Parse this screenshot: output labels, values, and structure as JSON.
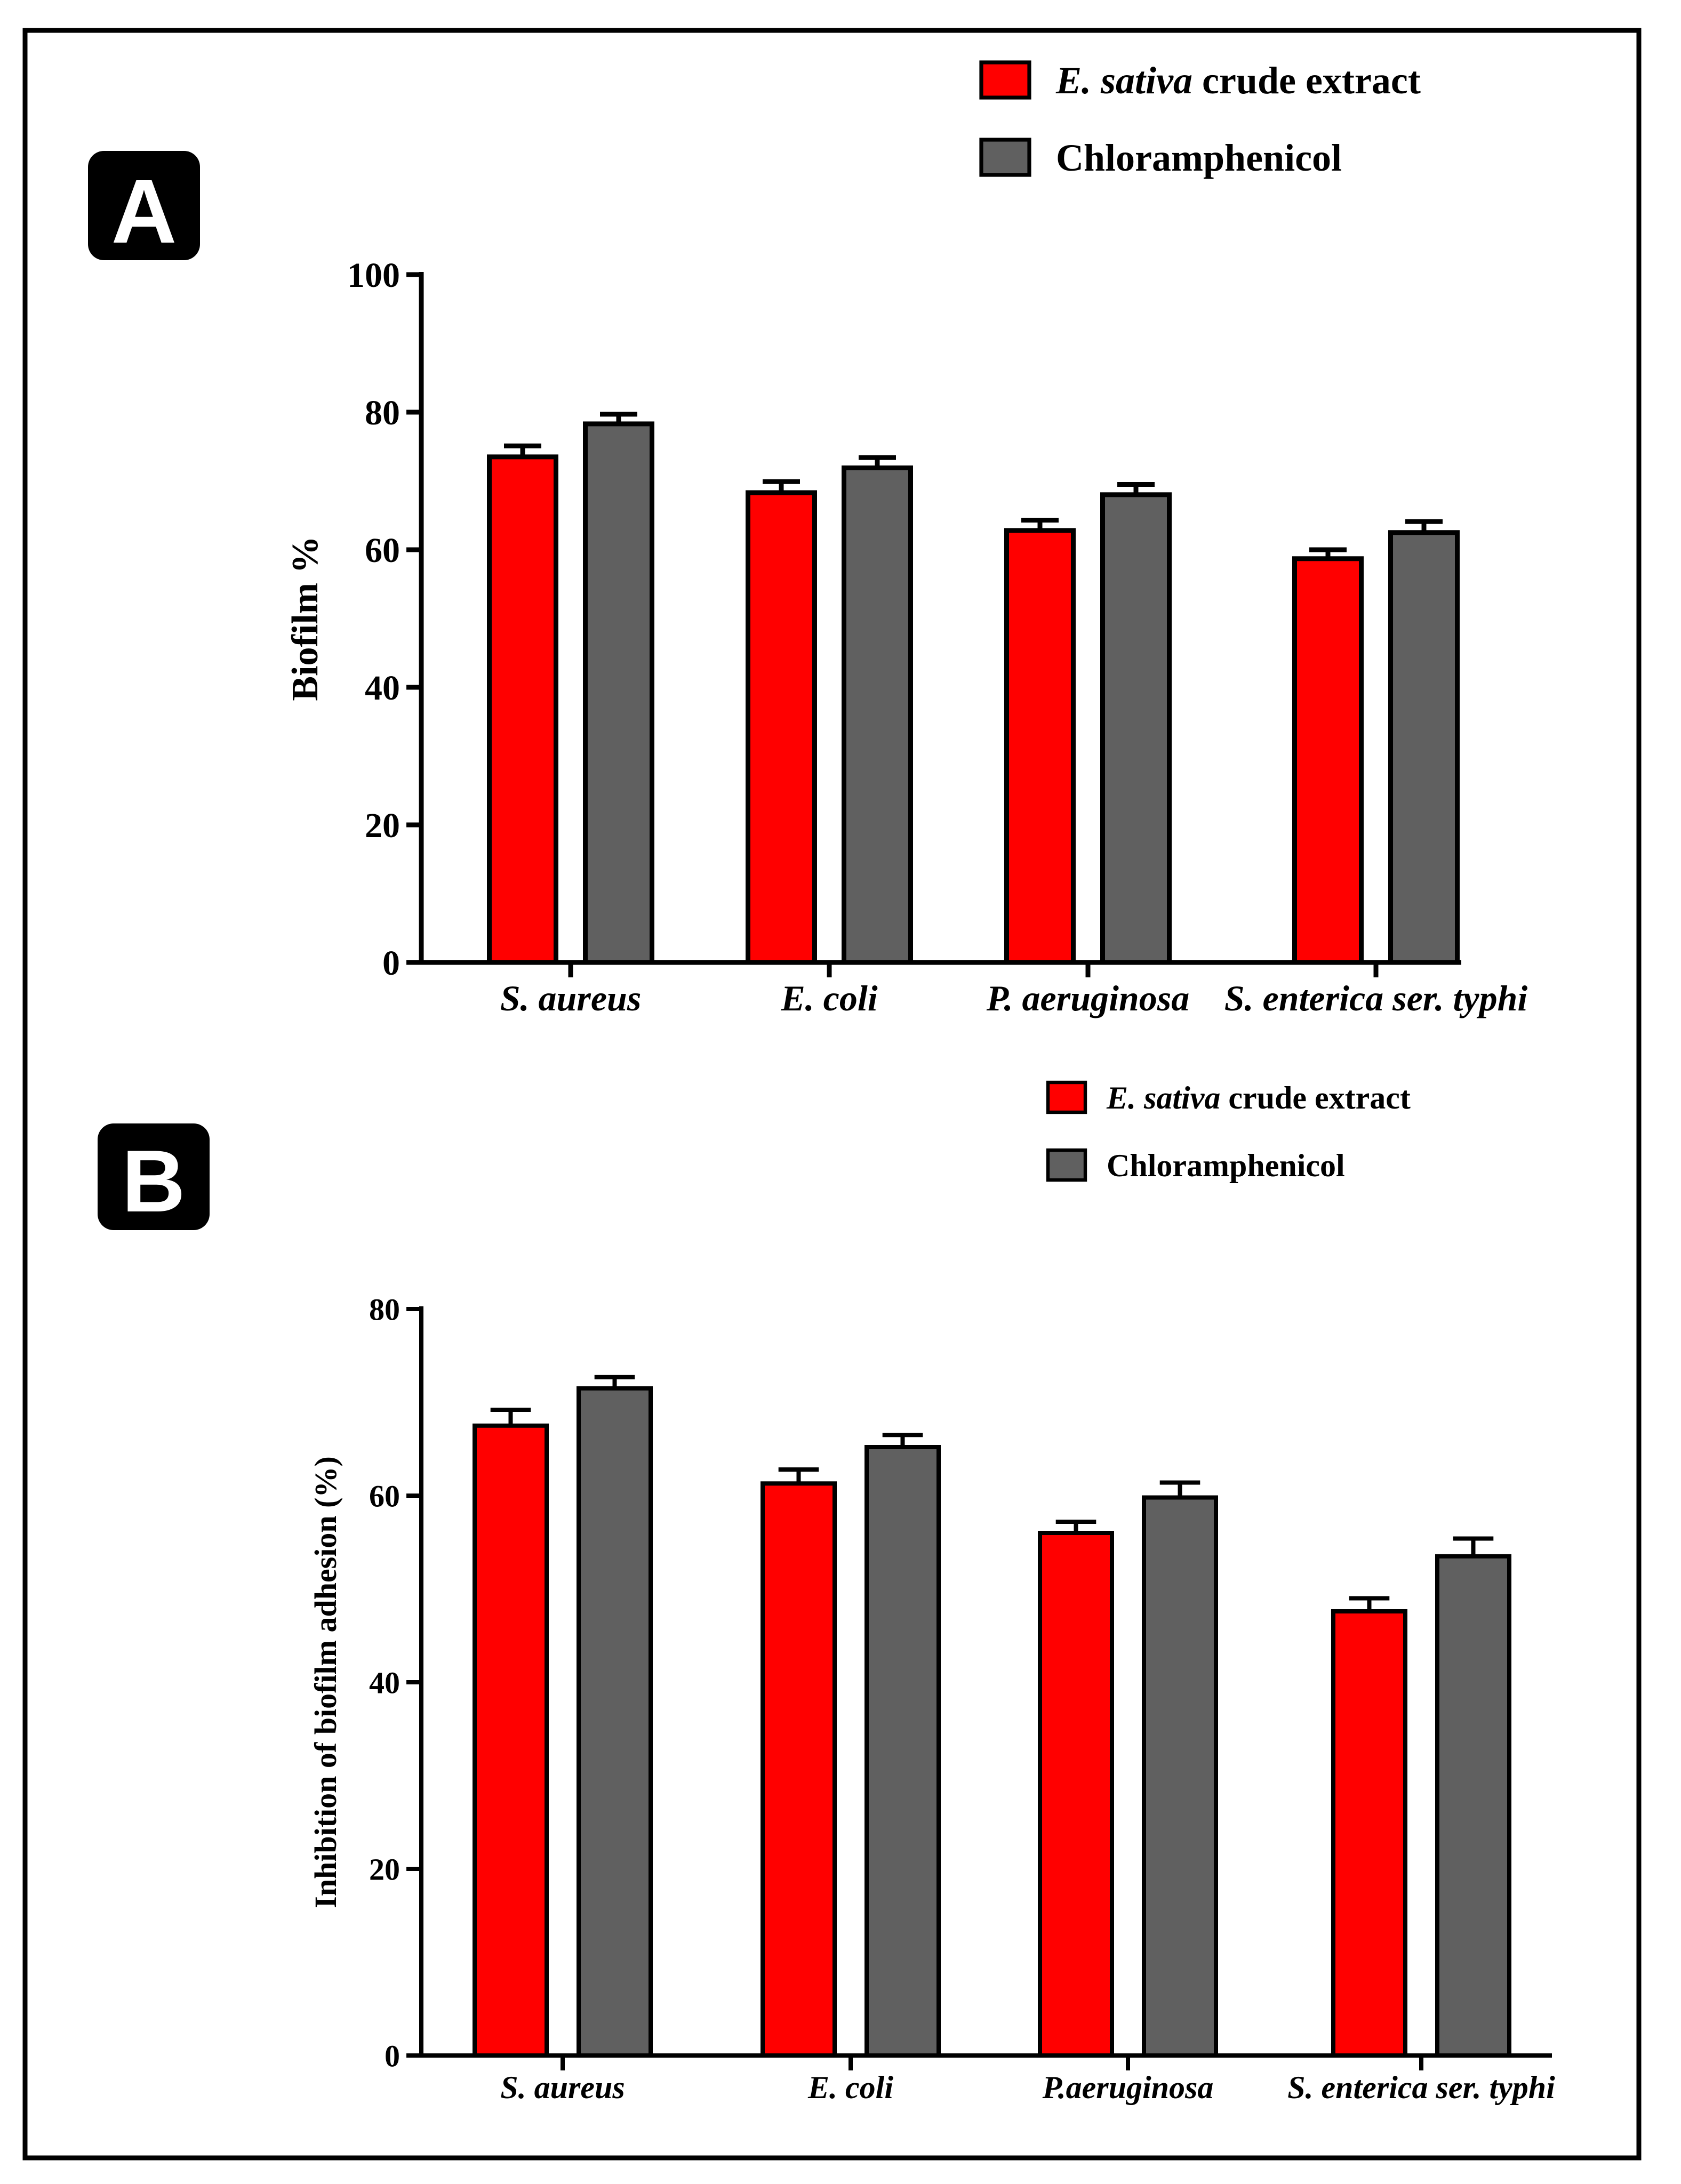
{
  "figure": {
    "panel_a_label": "A",
    "panel_b_label": "B"
  },
  "colors": {
    "extract": "#ff0000",
    "control": "#606060",
    "axis": "#000000",
    "frame": "#000000"
  },
  "chart_data": [
    {
      "type": "bar",
      "panel": "A",
      "title": "",
      "xlabel": "",
      "ylabel": "Biofilm %",
      "ylim": [
        0,
        100
      ],
      "yticks": [
        0,
        20,
        40,
        60,
        80,
        100
      ],
      "categories": [
        "S. aureus",
        "E. coli",
        "P. aeruginosa",
        "S. enterica ser. typhi"
      ],
      "series": [
        {
          "name": "E. sativa crude extract",
          "name_italic": "E. sativa",
          "name_rest": " crude extract",
          "color": "#ff0000",
          "values": [
            73.5,
            68.3,
            62.8,
            58.7
          ],
          "errors": [
            1.6,
            1.6,
            1.5,
            1.3
          ]
        },
        {
          "name": "Chloramphenicol",
          "name_italic": "",
          "name_rest": "Chloramphenicol",
          "color": "#606060",
          "values": [
            78.3,
            71.9,
            68.0,
            62.5
          ],
          "errors": [
            1.4,
            1.5,
            1.5,
            1.6
          ]
        }
      ],
      "legend_position": "top-right",
      "grid": false
    },
    {
      "type": "bar",
      "panel": "B",
      "title": "",
      "xlabel": "",
      "ylabel": "Inhibition of biofilm adhesion (%)",
      "ylim": [
        0,
        80
      ],
      "yticks": [
        0,
        20,
        40,
        60,
        80
      ],
      "categories": [
        "S. aureus",
        "E. coli",
        "P.aeruginosa",
        "S. enterica ser. typhi"
      ],
      "series": [
        {
          "name": "E. sativa crude extract",
          "name_italic": "E. sativa",
          "name_rest": " crude extract",
          "color": "#ff0000",
          "values": [
            67.5,
            61.3,
            56.0,
            47.6
          ],
          "errors": [
            1.7,
            1.5,
            1.2,
            1.4
          ]
        },
        {
          "name": "Chloramphenicol",
          "name_italic": "",
          "name_rest": "Chloramphenicol",
          "color": "#606060",
          "values": [
            71.5,
            65.2,
            59.8,
            53.5
          ],
          "errors": [
            1.2,
            1.3,
            1.6,
            1.9
          ]
        }
      ],
      "legend_position": "top-right",
      "grid": false
    }
  ]
}
